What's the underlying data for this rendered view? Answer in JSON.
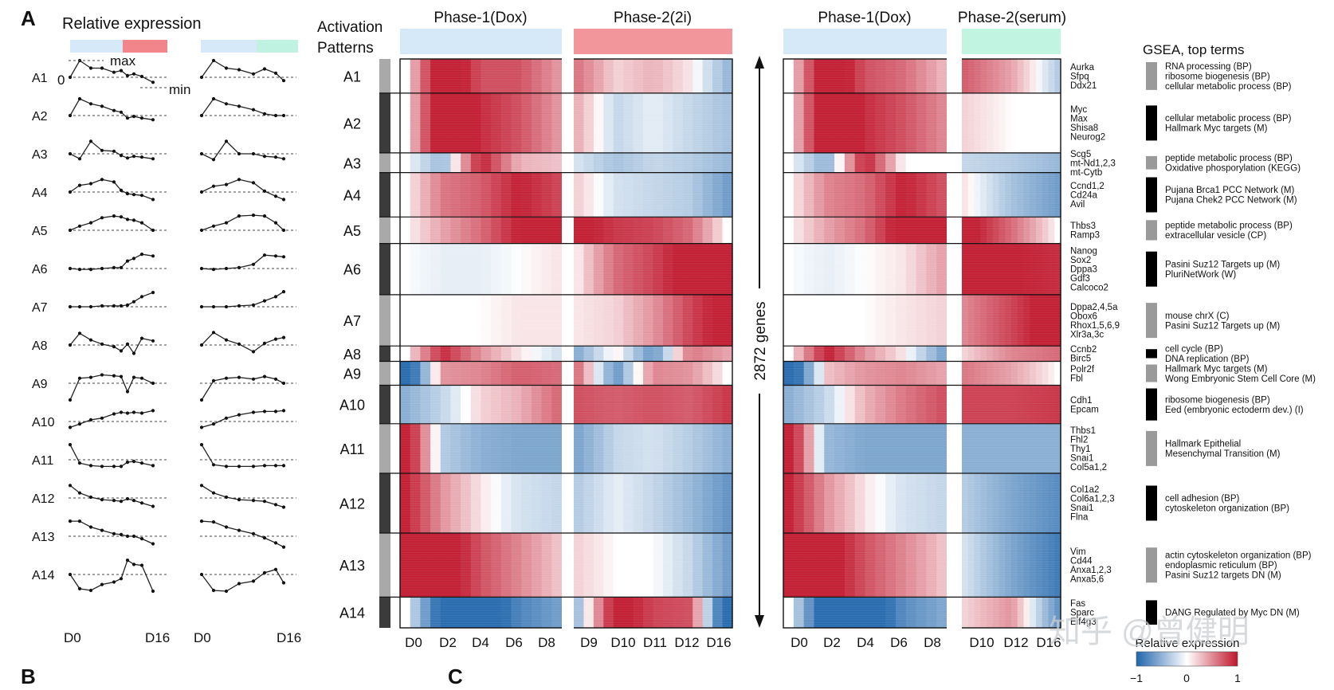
{
  "panel_letters": {
    "A": "A",
    "B": "B",
    "C": "C"
  },
  "relative_expression": {
    "title": "Relative expression",
    "max_label": "max",
    "zero_label": "0",
    "min_label": "min",
    "x_start": "D0",
    "x_end": "D16",
    "bar_colors": {
      "dox": "#d6e9f8",
      "twoi": "#f2848b",
      "serum": "#bff2e0"
    }
  },
  "activation_patterns_title": [
    "Activation",
    "Patterns"
  ],
  "patterns": [
    {
      "id": "A1",
      "shade": "light",
      "rows": 40,
      "genes": [
        "Aurka",
        "Sfpq",
        "Ddx21"
      ],
      "gsea": [
        "RNA processing (BP)",
        "ribosome biogenesis (BP)",
        "cellular metabolic process (BP)"
      ],
      "dox_profile": [
        0.0,
        1.0,
        0.55,
        0.55,
        0.3,
        0.4,
        0.1,
        0.2,
        0.05,
        -0.3
      ],
      "serum_profile": [
        0.0,
        1.0,
        0.55,
        0.45,
        0.2,
        0.5,
        0.25,
        -0.2
      ]
    },
    {
      "id": "A2",
      "shade": "dark",
      "rows": 70,
      "genes": [
        "Myc",
        "Max",
        "Shisa8",
        "Neurog2"
      ],
      "gsea": [
        "cellular metabolic process (BP)",
        "Hallmark Myc targets (M)"
      ],
      "dox_profile": [
        0.0,
        1.0,
        0.7,
        0.55,
        0.3,
        0.2,
        -0.15,
        -0.05,
        -0.15,
        -0.25
      ],
      "serum_profile": [
        0.0,
        1.0,
        0.7,
        0.55,
        0.35,
        0.1,
        0.0,
        0.0
      ]
    },
    {
      "id": "A3",
      "shade": "light",
      "rows": 23,
      "genes": [
        "Scg5",
        "mt-Nd1,2,3",
        "mt-Cytb"
      ],
      "gsea": [
        "peptide metabolic process (BP)",
        "Oxidative phosporylation (KEGG)"
      ],
      "dox_profile": [
        0.0,
        -0.3,
        0.75,
        0.2,
        0.15,
        -0.1,
        -0.25,
        -0.15,
        -0.2,
        -0.3
      ],
      "serum_profile": [
        0.0,
        -0.35,
        0.75,
        0.0,
        0.0,
        -0.15,
        -0.2,
        -0.3
      ]
    },
    {
      "id": "A4",
      "shade": "dark",
      "rows": 52,
      "genes": [
        "Ccnd1,2",
        "Cd24a",
        "Avil"
      ],
      "gsea": [
        "Pujana Brca1 PCC Network (M)",
        "Pujana Chek2 PCC Network (M)"
      ],
      "dox_profile": [
        0.0,
        0.4,
        0.5,
        0.75,
        0.6,
        0.1,
        -0.1,
        -0.15,
        -0.2,
        -0.45
      ],
      "serum_profile": [
        0.0,
        0.35,
        0.45,
        0.75,
        0.55,
        0.05,
        -0.25,
        -0.45
      ]
    },
    {
      "id": "A5",
      "shade": "light",
      "rows": 31,
      "genes": [
        "Thbs3",
        "Ramp3"
      ],
      "gsea": [
        "peptide metabolic process (BP)",
        "extracellular vesicle (CP)"
      ],
      "dox_profile": [
        0.0,
        0.25,
        0.45,
        0.75,
        0.85,
        0.8,
        0.65,
        0.6,
        0.45,
        0.0
      ],
      "serum_profile": [
        0.0,
        0.25,
        0.45,
        0.85,
        0.9,
        0.85,
        0.45,
        0.0
      ]
    },
    {
      "id": "A6",
      "shade": "dark",
      "rows": 60,
      "genes": [
        "Nanog",
        "Sox2",
        "Dppa3",
        "Gdf3",
        "Calcoco2"
      ],
      "gsea": [
        "Pasini Suz12 Targets up (M)",
        "PluriNetWork (W)"
      ],
      "dox_profile": [
        0.0,
        -0.05,
        -0.05,
        0.0,
        0.05,
        0.05,
        0.45,
        0.6,
        0.85,
        0.75
      ],
      "serum_profile": [
        0.0,
        -0.05,
        0.0,
        0.05,
        0.25,
        0.8,
        0.75,
        0.7
      ]
    },
    {
      "id": "A7",
      "shade": "light",
      "rows": 60,
      "genes": [
        "Dppa2,4,5a",
        "Obox6",
        "Rhox1,5,6,9",
        "Xlr3a,3c"
      ],
      "gsea": [
        "mouse chrX (C)",
        "Pasini Suz12 Targets up (M)"
      ],
      "dox_profile": [
        0.0,
        0.0,
        0.0,
        0.05,
        0.05,
        0.05,
        0.1,
        0.3,
        0.6,
        0.85
      ],
      "serum_profile": [
        0.0,
        0.0,
        0.0,
        0.05,
        0.1,
        0.35,
        0.6,
        0.9
      ]
    },
    {
      "id": "A8",
      "shade": "dark",
      "rows": 18,
      "genes": [
        "Ccnb2",
        "Birc5"
      ],
      "gsea": [
        "cell cycle (BP)",
        "DNA replication (BP)"
      ],
      "dox_profile": [
        0.0,
        0.7,
        0.3,
        0.05,
        -0.1,
        -0.35,
        0.05,
        -0.5,
        0.4,
        0.25
      ],
      "serum_profile": [
        0.0,
        0.75,
        0.3,
        0.05,
        -0.4,
        0.1,
        0.35,
        0.45
      ]
    },
    {
      "id": "A9",
      "shade": "light",
      "rows": 28,
      "genes": [
        "Polr2f",
        "Fbl"
      ],
      "gsea": [
        "Hallmark Myc targets (M)",
        "Wong Embryonic Stem Cell Core (M)"
      ],
      "dox_profile": [
        -1.0,
        0.3,
        0.35,
        0.5,
        0.45,
        0.4,
        -0.5,
        0.35,
        0.3,
        0.0
      ],
      "serum_profile": [
        -1.0,
        0.15,
        0.3,
        0.35,
        0.25,
        0.4,
        0.25,
        0.0
      ]
    },
    {
      "id": "A10",
      "shade": "dark",
      "rows": 45,
      "genes": [
        "Cdh1",
        "Epcam"
      ],
      "gsea": [
        "ribosome biogenesis (BP)",
        "Eed (embryonic ectoderm dev.) (I)"
      ],
      "dox_profile": [
        -0.35,
        -0.15,
        0.1,
        0.2,
        0.45,
        0.55,
        0.5,
        0.55,
        0.5,
        0.65
      ],
      "serum_profile": [
        -0.35,
        -0.15,
        0.2,
        0.4,
        0.55,
        0.6,
        0.6,
        0.65
      ]
    },
    {
      "id": "A11",
      "shade": "light",
      "rows": 58,
      "genes": [
        "Thbs1",
        "Fhl2",
        "Thy1",
        "Snai1",
        "Col5a1,2"
      ],
      "gsea": [
        "Hallmark Epithelial",
        "Mesenchymal Transition (M)"
      ],
      "dox_profile": [
        0.9,
        -0.2,
        -0.35,
        -0.4,
        -0.4,
        -0.4,
        -0.15,
        -0.1,
        -0.2,
        -0.35
      ],
      "serum_profile": [
        0.9,
        -0.3,
        -0.4,
        -0.4,
        -0.4,
        -0.35,
        -0.35,
        -0.35
      ]
    },
    {
      "id": "A12",
      "shade": "dark",
      "rows": 70,
      "genes": [
        "Col1a2",
        "Col6a1,2,3",
        "Snai1",
        "Flna"
      ],
      "gsea": [
        "cell adhesion (BP)",
        "cytoskeleton organization (BP)"
      ],
      "dox_profile": [
        0.75,
        0.3,
        0.05,
        -0.1,
        -0.15,
        -0.2,
        -0.05,
        -0.15,
        -0.3,
        -0.5
      ],
      "serum_profile": [
        0.75,
        0.3,
        0.05,
        -0.1,
        -0.15,
        -0.2,
        -0.4,
        -0.55
      ]
    },
    {
      "id": "A13",
      "shade": "light",
      "rows": 75,
      "genes": [
        "Vim",
        "Cd44",
        "Anxa1,2,3",
        "Anxa5,6"
      ],
      "gsea": [
        "actin cytoskeleton organization (BP)",
        "endoplasmic reticulum (BP)",
        "Pasini Suz12 targets DN (M)"
      ],
      "dox_profile": [
        0.9,
        0.9,
        0.55,
        0.35,
        0.15,
        0.1,
        0.0,
        0.0,
        -0.15,
        -0.45
      ],
      "serum_profile": [
        0.9,
        0.85,
        0.55,
        0.35,
        0.15,
        -0.1,
        -0.4,
        -0.65
      ]
    },
    {
      "id": "A14",
      "shade": "dark",
      "rows": 36,
      "genes": [
        "Fas",
        "Sparc",
        "Eif4g3"
      ],
      "gsea": [
        "DANG Regulated by Myc DN (M)"
      ],
      "dox_profile": [
        0.0,
        -0.85,
        -0.95,
        -0.6,
        -0.45,
        -0.25,
        0.85,
        0.6,
        0.55,
        -1.0
      ],
      "serum_profile": [
        0.0,
        -0.95,
        -1.0,
        -0.55,
        -0.4,
        0.1,
        0.3,
        -0.5
      ]
    }
  ],
  "heatmap_left": {
    "phase1_label": "Phase-1(Dox)",
    "phase2_label": "Phase-2(2i)",
    "phase1_color": "#d6e9f8",
    "phase2_color": "#f2969c",
    "ticks": [
      "D0",
      "D2",
      "D4",
      "D6",
      "D8",
      "D9",
      "D10",
      "D11",
      "D12",
      "D16"
    ]
  },
  "heatmap_right": {
    "phase1_label": "Phase-1(Dox)",
    "phase2_label": "Phase-2(serum)",
    "phase1_color": "#d6e9f8",
    "phase2_color": "#c2f4e2",
    "ticks": [
      "D0",
      "D2",
      "D4",
      "D6",
      "D8",
      "D10",
      "D12",
      "D16"
    ]
  },
  "gene_count_label": "2872 genes",
  "gsea_title": "GSEA, top terms",
  "colorbar": {
    "title": "Relative expression",
    "min": "−1",
    "mid": "0",
    "max": "1",
    "low_color": "#2166ac",
    "mid_color": "#ffffff",
    "high_color": "#c0162c"
  },
  "watermark": "知乎 @曾健明"
}
